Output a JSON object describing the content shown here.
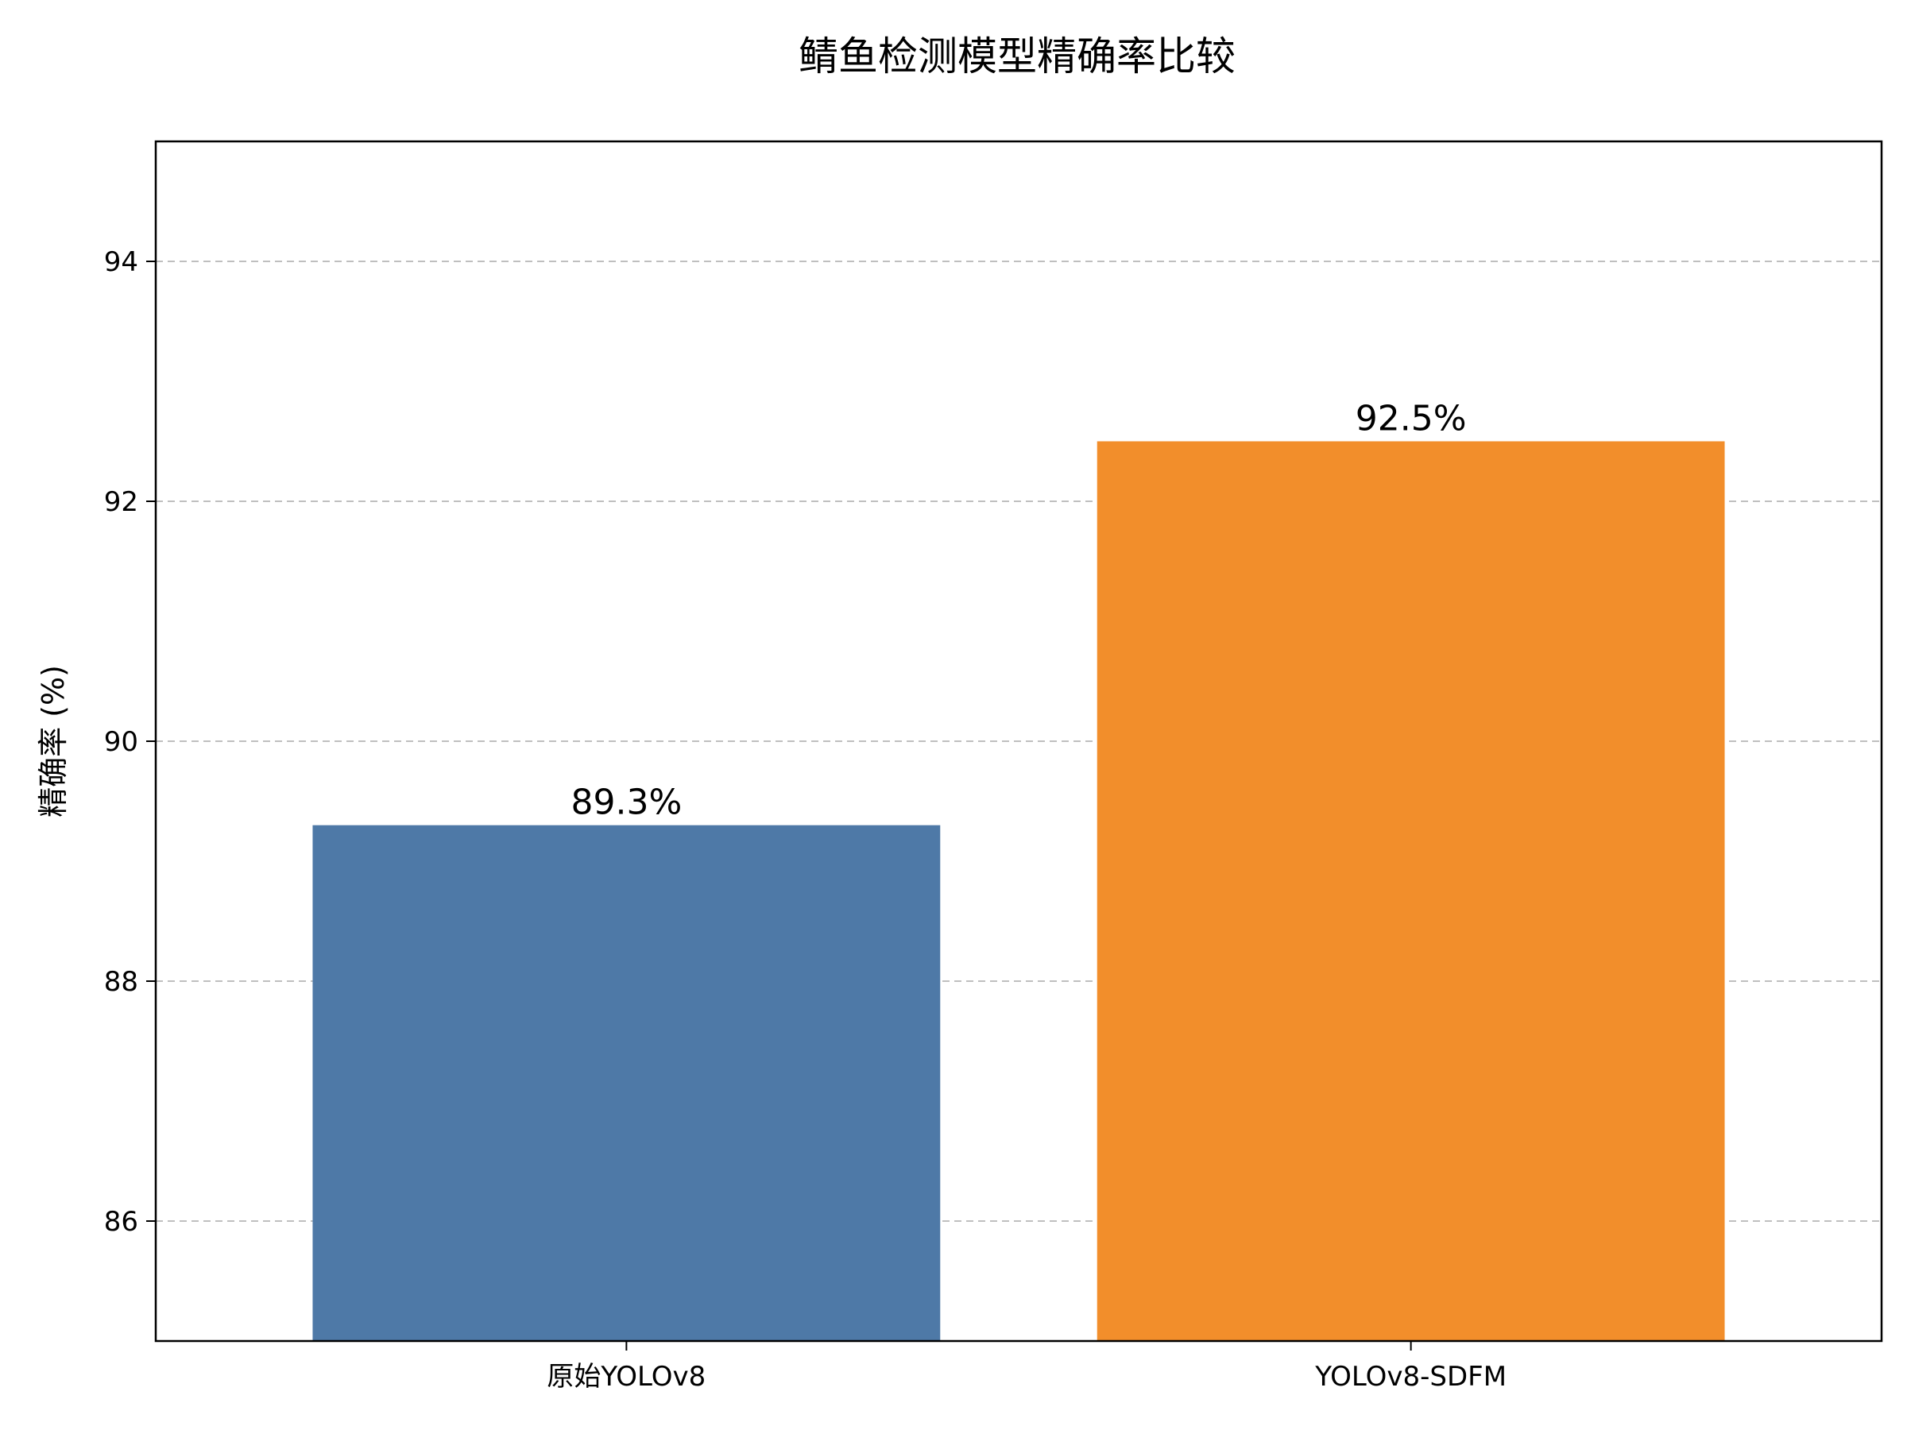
{
  "chart_data": {
    "type": "bar",
    "title": "鲭鱼检测模型精确率比较",
    "xlabel": "",
    "ylabel": "精确率 (%)",
    "categories": [
      "原始YOLOv8",
      "YOLOv8-SDFM"
    ],
    "values": [
      89.3,
      92.5
    ],
    "value_labels": [
      "89.3%",
      "92.5%"
    ],
    "bar_colors": [
      "#4e79a7",
      "#f28e2b"
    ],
    "ylim": [
      85,
      95
    ],
    "yticks": [
      86,
      88,
      90,
      92,
      94
    ],
    "ytick_labels": [
      "86",
      "88",
      "90",
      "92",
      "94"
    ],
    "grid": "y-dashed",
    "legend": "none"
  }
}
